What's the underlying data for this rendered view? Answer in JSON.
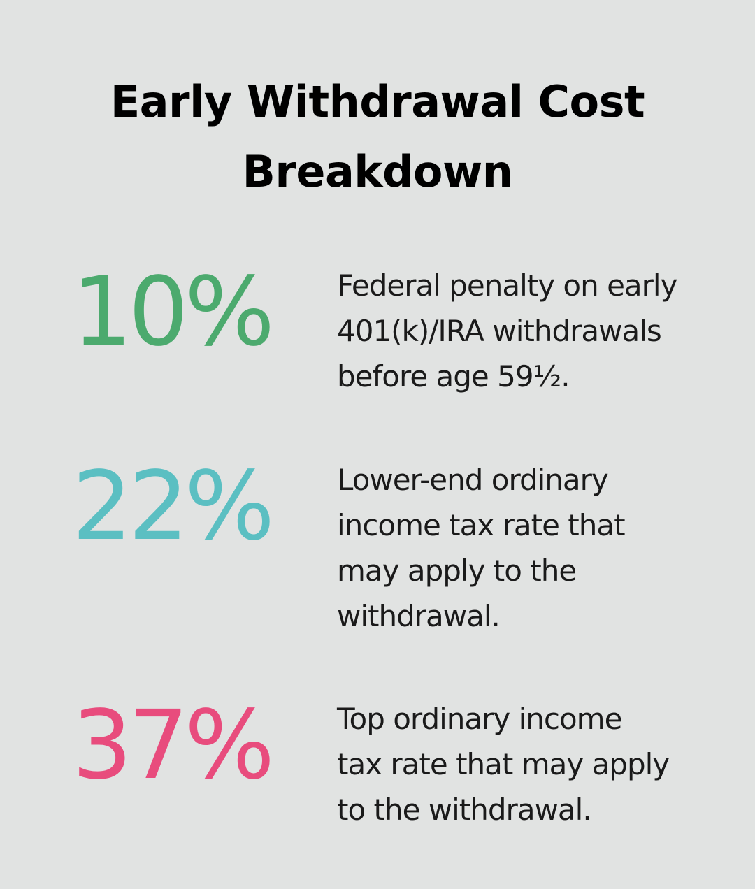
{
  "title": {
    "line1": "Early Withdrawal Cost",
    "line2": "Breakdown"
  },
  "stats": [
    {
      "value": "10%",
      "color": "#4caa6e",
      "lines": [
        "Federal penalty on early",
        "401(k)/IRA withdrawals",
        "before age 59½."
      ]
    },
    {
      "value": "22%",
      "color": "#5bbfc2",
      "lines": [
        "Lower-end ordinary",
        "income tax rate that",
        "may apply to the",
        "withdrawal."
      ]
    },
    {
      "value": "37%",
      "color": "#e84c7d",
      "lines": [
        "Top ordinary income",
        "tax rate that may apply",
        "to the withdrawal."
      ]
    }
  ]
}
